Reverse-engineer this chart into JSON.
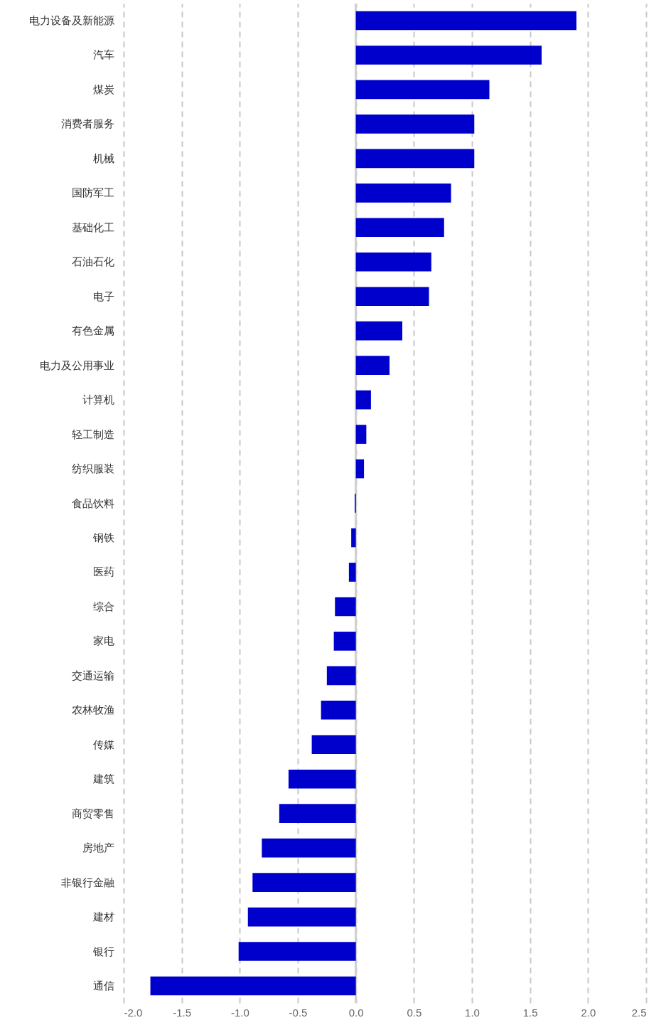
{
  "chart_data": {
    "type": "bar",
    "orientation": "horizontal",
    "categories": [
      "电力设备及新能源",
      "汽车",
      "煤炭",
      "消费者服务",
      "机械",
      "国防军工",
      "基础化工",
      "石油石化",
      "电子",
      "有色金属",
      "电力及公用事业",
      "计算机",
      "轻工制造",
      "纺织服装",
      "食品饮料",
      "钢铁",
      "医药",
      "综合",
      "家电",
      "交通运输",
      "农林牧渔",
      "传媒",
      "建筑",
      "商贸零售",
      "房地产",
      "非银行金融",
      "建材",
      "银行",
      "通信"
    ],
    "values": [
      1.9,
      1.6,
      1.15,
      1.02,
      1.02,
      0.82,
      0.76,
      0.65,
      0.63,
      0.4,
      0.29,
      0.13,
      0.09,
      0.07,
      -0.01,
      -0.04,
      -0.06,
      -0.18,
      -0.19,
      -0.25,
      -0.3,
      -0.38,
      -0.58,
      -0.66,
      -0.81,
      -0.89,
      -0.93,
      -1.01,
      -1.77
    ],
    "color": "#0000cc",
    "xlim": [
      -2,
      2.5
    ],
    "xticks": [
      {
        "value": -2,
        "label": "-2.0"
      },
      {
        "value": -1.5,
        "label": "-1.5"
      },
      {
        "value": -1,
        "label": "-1.0"
      },
      {
        "value": -0.5,
        "label": "-0.5"
      },
      {
        "value": 0,
        "label": "0.0"
      },
      {
        "value": 0.5,
        "label": "0.5"
      },
      {
        "value": 1,
        "label": "1.0"
      },
      {
        "value": 1.5,
        "label": "1.5"
      },
      {
        "value": 2,
        "label": "2.0"
      },
      {
        "value": 2.5,
        "label": "2.5"
      }
    ],
    "grid": "x",
    "ref_lines": [
      {
        "axis": "x",
        "value": 0,
        "color": "#d0d0d0"
      }
    ]
  }
}
